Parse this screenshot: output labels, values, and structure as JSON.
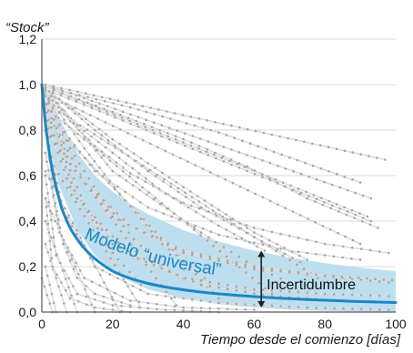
{
  "chart_data": {
    "type": "line",
    "ylabel": "“Stock”",
    "xlabel": "Tiempo desde el comienzo [días]",
    "xlim": [
      0,
      100
    ],
    "ylim": [
      0,
      1.2
    ],
    "x_ticks": [
      "0",
      "20",
      "40",
      "60",
      "80",
      "100"
    ],
    "y_ticks": [
      "0,0",
      "0,2",
      "0,4",
      "0,6",
      "0,8",
      "1,0",
      "1,2"
    ],
    "grid": "horizontal",
    "colors": {
      "model": "#1c86c4",
      "band": "#b8dcee",
      "background_lines": "#dcdcdc",
      "background_points": "#a6a6a6",
      "arrow": "#222222"
    },
    "model": {
      "label": "Modelo “universal”",
      "x": [
        0,
        1,
        2,
        3,
        4,
        5,
        6,
        8,
        10,
        12,
        15,
        20,
        25,
        30,
        35,
        40,
        45,
        50,
        60,
        70,
        80,
        90,
        100
      ],
      "y": [
        1.0,
        0.83,
        0.71,
        0.62,
        0.55,
        0.49,
        0.44,
        0.37,
        0.32,
        0.28,
        0.235,
        0.18,
        0.148,
        0.126,
        0.11,
        0.098,
        0.088,
        0.08,
        0.068,
        0.059,
        0.052,
        0.046,
        0.042
      ]
    },
    "uncertainty_band": {
      "x": [
        0,
        2,
        5,
        10,
        15,
        20,
        25,
        30,
        40,
        50,
        60,
        70,
        80,
        90,
        100
      ],
      "upper": [
        1.0,
        0.96,
        0.85,
        0.7,
        0.6,
        0.53,
        0.475,
        0.43,
        0.36,
        0.31,
        0.27,
        0.24,
        0.215,
        0.195,
        0.18
      ],
      "lower": [
        0.97,
        0.74,
        0.55,
        0.36,
        0.25,
        0.18,
        0.135,
        0.1,
        0.06,
        0.035,
        0.02,
        0.01,
        0.005,
        0.002,
        0.0
      ]
    },
    "annotation": {
      "label": "Incertidumbre",
      "x": 62,
      "y_from": 0.02,
      "y_to": 0.27
    },
    "background_series": [
      {
        "x": [
          1,
          97
        ],
        "y": [
          1.0,
          0.67
        ]
      },
      {
        "x": [
          1,
          93
        ],
        "y": [
          1.0,
          0.5
        ]
      },
      {
        "x": [
          1,
          92
        ],
        "y": [
          0.99,
          0.42
        ]
      },
      {
        "x": [
          1,
          93
        ],
        "y": [
          0.98,
          0.4
        ]
      },
      {
        "x": [
          1,
          90
        ],
        "y": [
          0.96,
          0.3
        ]
      },
      {
        "x": [
          1,
          78
        ],
        "y": [
          0.92,
          0.15
        ]
      },
      {
        "x": [
          1,
          65
        ],
        "y": [
          0.9,
          0.08
        ]
      },
      {
        "x": [
          1,
          50
        ],
        "y": [
          0.86,
          0.06
        ]
      },
      {
        "x": [
          1,
          38
        ],
        "y": [
          0.8,
          0.03
        ]
      },
      {
        "x": [
          1,
          28
        ],
        "y": [
          0.7,
          0.02
        ]
      },
      {
        "x": [
          1,
          22
        ],
        "y": [
          0.62,
          0.0
        ]
      },
      {
        "x": [
          1,
          15
        ],
        "y": [
          0.5,
          0.0
        ]
      },
      {
        "x": [
          1,
          10
        ],
        "y": [
          0.4,
          0.0
        ]
      },
      {
        "x": [
          1,
          7
        ],
        "y": [
          0.3,
          0.0
        ]
      },
      {
        "x": [
          1,
          4
        ],
        "y": [
          0.2,
          0.0
        ]
      },
      {
        "x": [
          0,
          3
        ],
        "y": [
          0.15,
          0.0
        ]
      },
      {
        "x": [
          1,
          3,
          8,
          15,
          25,
          40,
          60,
          80,
          98
        ],
        "y": [
          0.98,
          0.93,
          0.84,
          0.73,
          0.61,
          0.48,
          0.37,
          0.3,
          0.26
        ]
      },
      {
        "x": [
          1,
          5,
          15,
          30,
          50,
          70,
          90
        ],
        "y": [
          0.97,
          0.82,
          0.62,
          0.46,
          0.34,
          0.27,
          0.23
        ]
      },
      {
        "x": [
          1,
          5,
          12,
          25,
          40,
          60,
          80,
          98
        ],
        "y": [
          0.95,
          0.78,
          0.57,
          0.38,
          0.27,
          0.2,
          0.16,
          0.13
        ]
      },
      {
        "x": [
          1,
          8,
          20,
          40,
          60,
          80,
          99
        ],
        "y": [
          0.92,
          0.65,
          0.42,
          0.26,
          0.19,
          0.16,
          0.14
        ]
      },
      {
        "x": [
          1,
          8,
          20,
          40,
          60,
          80,
          98
        ],
        "y": [
          0.85,
          0.55,
          0.3,
          0.15,
          0.1,
          0.08,
          0.07
        ]
      },
      {
        "x": [
          1,
          10,
          25,
          45,
          65,
          85
        ],
        "y": [
          0.88,
          0.5,
          0.25,
          0.12,
          0.07,
          0.05
        ]
      },
      {
        "x": [
          1,
          6,
          15,
          30,
          50,
          75,
          98
        ],
        "y": [
          0.8,
          0.45,
          0.2,
          0.08,
          0.04,
          0.02,
          0.01
        ]
      },
      {
        "x": [
          1,
          5,
          12,
          25,
          40,
          60
        ],
        "y": [
          0.7,
          0.35,
          0.15,
          0.05,
          0.02,
          0.01
        ]
      },
      {
        "x": [
          1,
          4,
          10,
          20,
          35,
          50
        ],
        "y": [
          0.6,
          0.25,
          0.08,
          0.03,
          0.01,
          0.0
        ]
      },
      {
        "x": [
          1,
          3,
          8,
          15,
          25
        ],
        "y": [
          0.5,
          0.2,
          0.06,
          0.02,
          0.0
        ]
      },
      {
        "x": [
          1,
          3,
          6,
          10,
          15,
          25
        ],
        "y": [
          0.95,
          0.55,
          0.3,
          0.15,
          0.08,
          0.03
        ]
      },
      {
        "x": [
          1,
          10,
          20,
          35,
          50,
          63
        ],
        "y": [
          0.98,
          0.82,
          0.7,
          0.52,
          0.38,
          0.27
        ]
      },
      {
        "x": [
          2,
          15,
          30,
          45,
          60,
          73
        ],
        "y": [
          0.97,
          0.8,
          0.62,
          0.46,
          0.33,
          0.22
        ]
      },
      {
        "x": [
          3,
          20,
          40,
          60,
          75
        ],
        "y": [
          0.96,
          0.76,
          0.55,
          0.35,
          0.23
        ]
      },
      {
        "x": [
          2,
          12,
          22,
          34,
          46
        ],
        "y": [
          0.94,
          0.72,
          0.52,
          0.3,
          0.15
        ]
      },
      {
        "x": [
          2,
          8,
          16,
          26,
          36
        ],
        "y": [
          0.93,
          0.72,
          0.52,
          0.32,
          0.18
        ]
      },
      {
        "x": [
          2,
          7,
          13,
          20,
          28
        ],
        "y": [
          0.92,
          0.66,
          0.44,
          0.26,
          0.12
        ]
      },
      {
        "x": [
          1,
          20,
          40,
          58,
          75,
          95
        ],
        "y": [
          0.99,
          0.88,
          0.76,
          0.64,
          0.5,
          0.37
        ]
      },
      {
        "x": [
          1,
          25,
          50,
          70,
          90
        ],
        "y": [
          0.99,
          0.9,
          0.79,
          0.68,
          0.57
        ]
      },
      {
        "x": [
          1,
          20,
          45,
          60,
          70
        ],
        "y": [
          0.98,
          0.62,
          0.35,
          0.2,
          0.13
        ]
      }
    ]
  }
}
